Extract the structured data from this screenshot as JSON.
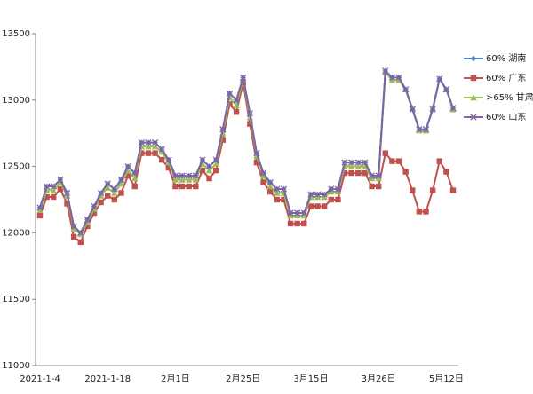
{
  "chart_data": {
    "type": "line",
    "categories": [
      "2021-1-4",
      null,
      null,
      null,
      null,
      null,
      null,
      null,
      null,
      null,
      "2021-1-18",
      null,
      null,
      null,
      null,
      null,
      null,
      null,
      null,
      null,
      "2月1日",
      null,
      null,
      null,
      null,
      null,
      null,
      null,
      null,
      null,
      "2月25日",
      null,
      null,
      null,
      null,
      null,
      null,
      null,
      null,
      null,
      "3月15日",
      null,
      null,
      null,
      null,
      null,
      null,
      null,
      null,
      null,
      "3月26日",
      null,
      null,
      null,
      null,
      null,
      null,
      null,
      null,
      null,
      "5月12日",
      null
    ],
    "series": [
      {
        "name": "60% 广东",
        "color": "#c0504d",
        "marker": "square",
        "values": [
          12130,
          12270,
          12270,
          12330,
          12220,
          11970,
          11930,
          12050,
          12150,
          12230,
          12280,
          12250,
          12300,
          12430,
          12350,
          12600,
          12600,
          12600,
          12550,
          12490,
          12350,
          12350,
          12350,
          12350,
          12470,
          12410,
          12470,
          12700,
          12970,
          12910,
          13130,
          12820,
          12530,
          12380,
          12310,
          12250,
          12250,
          12070,
          12070,
          12070,
          12200,
          12200,
          12200,
          12250,
          12250,
          12450,
          12450,
          12450,
          12450,
          12350,
          12350,
          12600,
          12540,
          12540,
          12460,
          12320,
          12160,
          12160,
          12320,
          12540,
          12460,
          12320
        ]
      },
      {
        "name": ">65% 甘肃",
        "color": "#9bbb59",
        "marker": "triangle",
        "values": [
          12170,
          12320,
          12320,
          12380,
          12280,
          12030,
          11990,
          12080,
          12180,
          12280,
          12340,
          12300,
          12370,
          12470,
          12410,
          12650,
          12650,
          12650,
          12610,
          12530,
          12400,
          12400,
          12400,
          12400,
          12520,
          12470,
          12520,
          12750,
          13020,
          12960,
          13160,
          12870,
          12580,
          12430,
          12350,
          12300,
          12300,
          12130,
          12130,
          12130,
          12270,
          12270,
          12270,
          12310,
          12310,
          12500,
          12500,
          12500,
          12500,
          12410,
          12410,
          13210,
          13150,
          13150,
          13080,
          12940,
          12770,
          12770,
          12940,
          13160,
          13080,
          12930
        ]
      },
      {
        "name": "60% 湖南",
        "color": "#4f81bd",
        "marker": "diamond",
        "values": [
          12190,
          12350,
          12350,
          12400,
          12300,
          12050,
          12000,
          12100,
          12200,
          12300,
          12370,
          12330,
          12400,
          12500,
          12450,
          12680,
          12680,
          12680,
          12630,
          12550,
          12430,
          12430,
          12430,
          12430,
          12550,
          12500,
          12550,
          12780,
          13050,
          13000,
          13170,
          12900,
          12600,
          12450,
          12380,
          12330,
          12330,
          12150,
          12150,
          12150,
          12290,
          12290,
          12290,
          12330,
          12330,
          12530,
          12530,
          12530,
          12530,
          12430,
          12430,
          13220,
          13170,
          13170,
          13080,
          12930,
          12780,
          12780,
          12930,
          13160,
          13080,
          12940
        ]
      },
      {
        "name": "60% 山东",
        "color": "#8064a2",
        "marker": "x",
        "values": [
          12190,
          12350,
          12350,
          12400,
          12300,
          12050,
          12000,
          12100,
          12200,
          12300,
          12370,
          12330,
          12400,
          12500,
          12450,
          12680,
          12680,
          12680,
          12630,
          12550,
          12430,
          12430,
          12430,
          12430,
          12550,
          12500,
          12550,
          12780,
          13050,
          13000,
          13170,
          12900,
          12600,
          12450,
          12380,
          12330,
          12330,
          12150,
          12150,
          12150,
          12290,
          12290,
          12290,
          12330,
          12330,
          12530,
          12530,
          12530,
          12530,
          12430,
          12430,
          13220,
          13170,
          13170,
          13080,
          12930,
          12780,
          12780,
          12930,
          13160,
          13080,
          12940
        ]
      }
    ],
    "ylim": [
      11000,
      13500
    ],
    "yticks": [
      11000,
      11500,
      12000,
      12500,
      13000,
      13500
    ],
    "grid": false,
    "legend": "right"
  }
}
